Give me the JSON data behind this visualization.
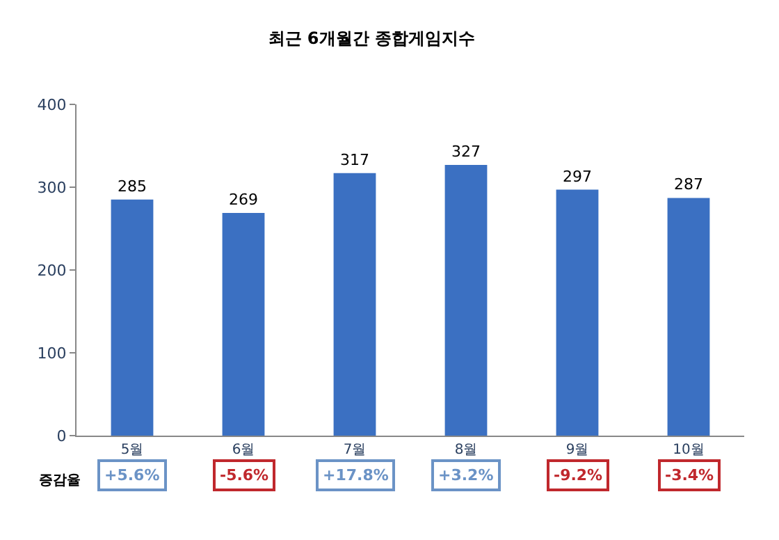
{
  "chart_data": {
    "type": "bar",
    "title": "최근 6개월간 종합게임지수",
    "categories": [
      "5월",
      "6월",
      "7월",
      "8월",
      "9월",
      "10월"
    ],
    "values": [
      285,
      269,
      317,
      327,
      297,
      287
    ],
    "color": "#3b70c2",
    "ylim": [
      0,
      400
    ],
    "yticks": [
      0,
      100,
      200,
      300,
      400
    ],
    "data_labels": true,
    "annotations": [
      "증감율",
      "+5.6%",
      "-5.6%",
      "+17.8%",
      "+3.2%",
      "-9.2%",
      "-3.4%"
    ]
  }
}
